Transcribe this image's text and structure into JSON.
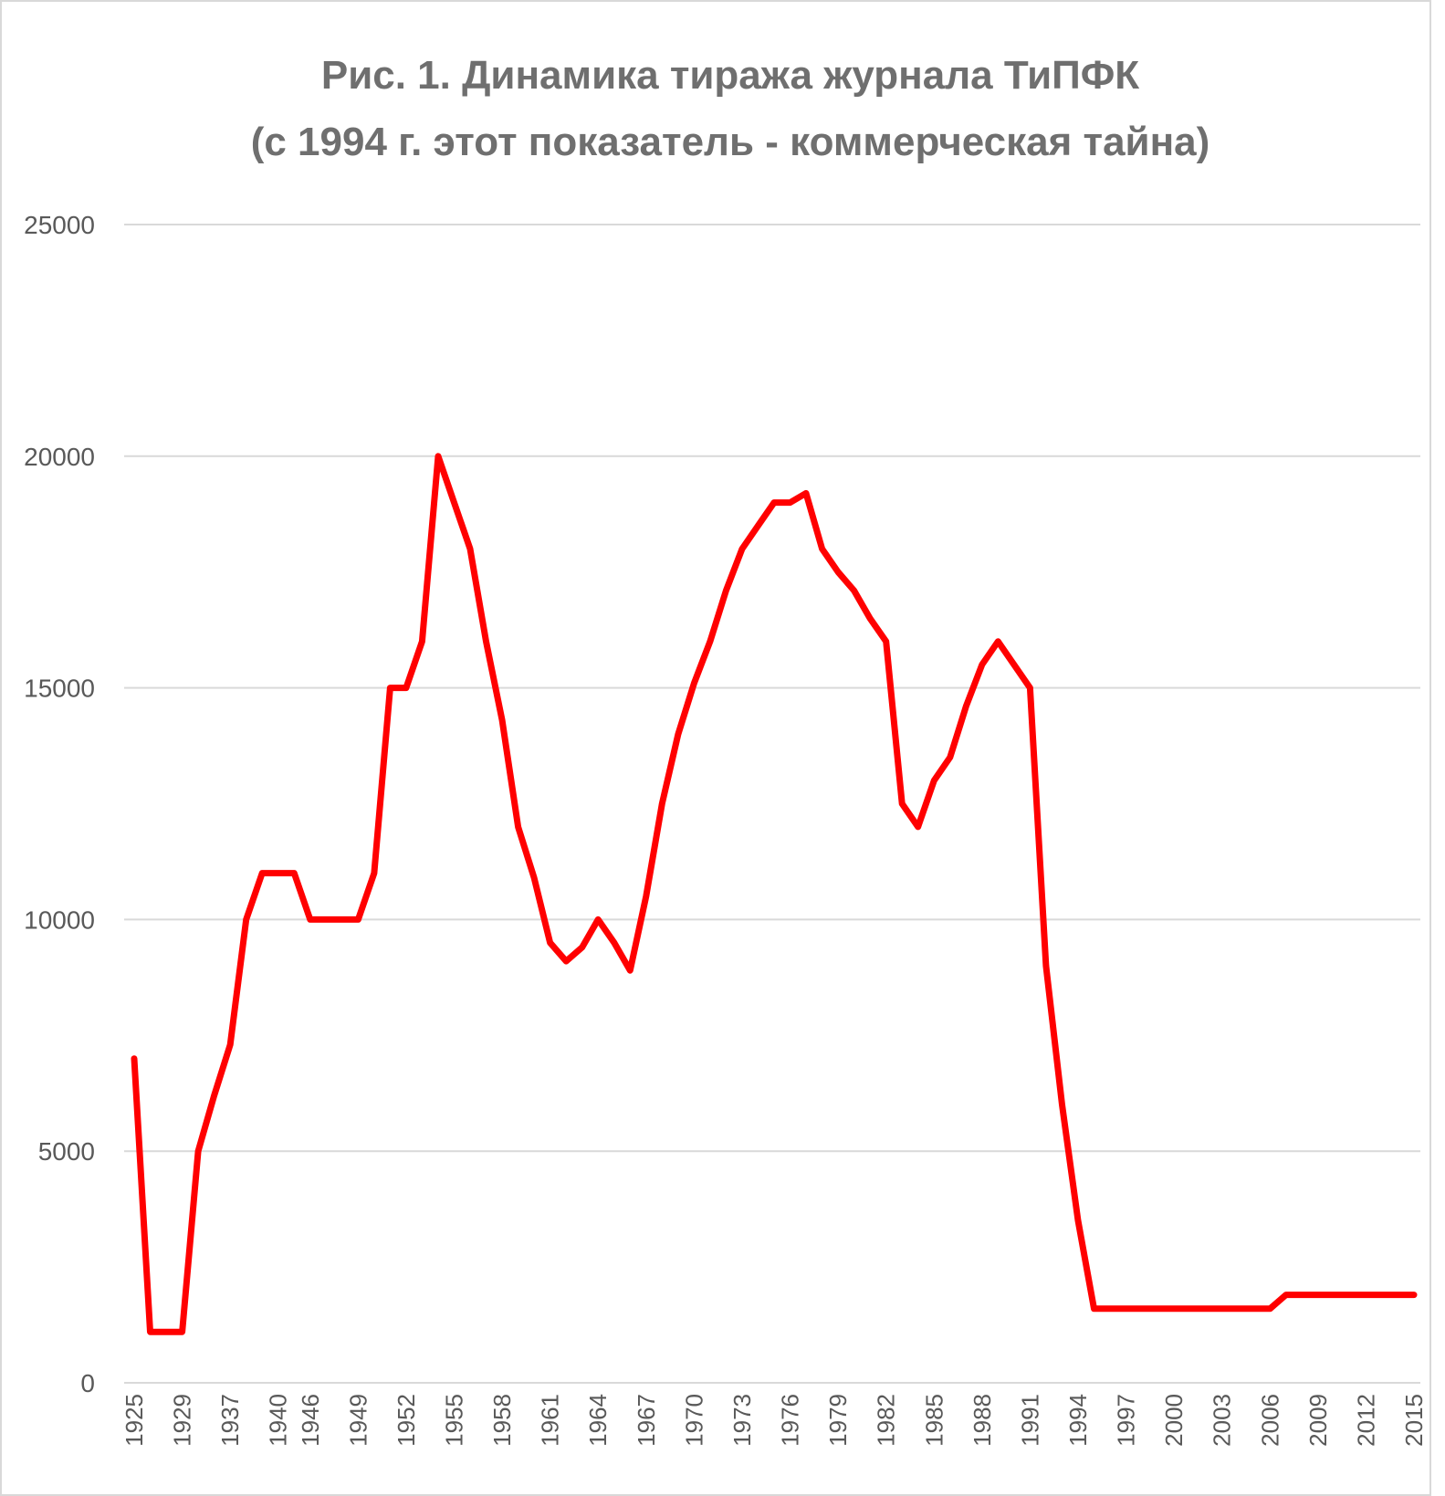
{
  "chart_data": {
    "type": "line",
    "title": "Рис. 1. Динамика тиража журнала ТиПФК",
    "subtitle": "(с 1994 г. этот показатель - коммерческая тайна)",
    "xlabel": "",
    "ylabel": "",
    "ylim": [
      0,
      25000
    ],
    "yticks": [
      0,
      5000,
      10000,
      15000,
      20000,
      25000
    ],
    "grid": true,
    "legend": "none",
    "line_color": "#ff0000",
    "categories": [
      "1925",
      "1927",
      "1928",
      "1929",
      "1935",
      "1936",
      "1937",
      "1938",
      "1939",
      "1940",
      "1941",
      "1946",
      "1947",
      "1948",
      "1949",
      "1950",
      "1951",
      "1952",
      "1953",
      "1954",
      "1955",
      "1956",
      "1957",
      "1958",
      "1959",
      "1960",
      "1961",
      "1962",
      "1963",
      "1964",
      "1965",
      "1966",
      "1967",
      "1968",
      "1969",
      "1970",
      "1971",
      "1972",
      "1973",
      "1974",
      "1975",
      "1976",
      "1977",
      "1978",
      "1979",
      "1980",
      "1981",
      "1982",
      "1983",
      "1984",
      "1985",
      "1986",
      "1987",
      "1988",
      "1989",
      "1990",
      "1991",
      "1992",
      "1993",
      "1994",
      "1995",
      "1996",
      "1997",
      "1998",
      "1999",
      "2000",
      "2001",
      "2002",
      "2003",
      "2004",
      "2005",
      "2006",
      "2007",
      "2008",
      "2009",
      "2010",
      "2011",
      "2012",
      "2013",
      "2014",
      "2015"
    ],
    "xtick_labels": [
      "1925",
      "1929",
      "1937",
      "1940",
      "1946",
      "1949",
      "1952",
      "1955",
      "1958",
      "1961",
      "1964",
      "1967",
      "1970",
      "1973",
      "1976",
      "1979",
      "1982",
      "1985",
      "1988",
      "1991",
      "1994",
      "1997",
      "2000",
      "2003",
      "2006",
      "2009",
      "2012",
      "2015"
    ],
    "series": [
      {
        "values": [
          7000,
          1100,
          1100,
          1100,
          5000,
          6200,
          7300,
          10000,
          11000,
          11000,
          11000,
          10000,
          10000,
          10000,
          10000,
          11000,
          15000,
          15000,
          16000,
          20000,
          19000,
          18000,
          16000,
          14300,
          12000,
          10900,
          9500,
          9100,
          9400,
          10000,
          9500,
          8900,
          10500,
          12500,
          14000,
          15100,
          16000,
          17100,
          18000,
          18500,
          19000,
          19000,
          19200,
          18000,
          17500,
          17100,
          16500,
          16000,
          12500,
          12000,
          13000,
          13500,
          14600,
          15500,
          16000,
          15500,
          15000,
          9000,
          6000,
          3500,
          1600,
          1600,
          1600,
          1600,
          1600,
          1600,
          1600,
          1600,
          1600,
          1600,
          1600,
          1600,
          1900,
          1900,
          1900,
          1900,
          1900,
          1900,
          1900,
          1900,
          1900
        ]
      }
    ]
  }
}
